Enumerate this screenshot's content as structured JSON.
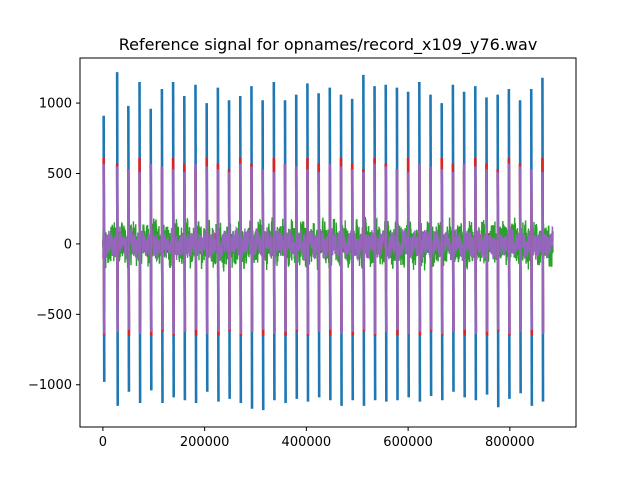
{
  "chart_data": {
    "type": "line",
    "title": "Reference signal for opnames/record_x109_y76.wav",
    "xlabel": "",
    "ylabel": "",
    "xlim": [
      -45000,
      930000
    ],
    "ylim": [
      -1300,
      1320
    ],
    "x_ticks": [
      0,
      200000,
      400000,
      600000,
      800000
    ],
    "x_tick_labels": [
      "0",
      "200000",
      "400000",
      "600000",
      "800000"
    ],
    "y_ticks": [
      -1000,
      -500,
      0,
      500,
      1000
    ],
    "y_tick_labels": [
      "−1000",
      "−500",
      "0",
      "500",
      "1000"
    ],
    "grid": false,
    "legend": "none",
    "signal_x_range": [
      0,
      885000
    ],
    "burst_period": 22200,
    "series": [
      {
        "color": "#1f77b4",
        "spike_positions": [
          1500,
          28000,
          50000,
          72000,
          94000,
          116000,
          138000,
          160000,
          182000,
          204000,
          226000,
          248000,
          270000,
          292000,
          314000,
          336000,
          358000,
          380000,
          402000,
          424000,
          446000,
          468000,
          490000,
          512000,
          534000,
          556000,
          578000,
          600000,
          622000,
          644000,
          666000,
          688000,
          710000,
          732000,
          754000,
          776000,
          798000,
          820000,
          842000,
          864000
        ],
        "spike_peaks": [
          910,
          1220,
          980,
          1150,
          960,
          1100,
          1150,
          1050,
          1130,
          1000,
          1110,
          1020,
          1050,
          1120,
          1020,
          1150,
          1020,
          1060,
          1140,
          1070,
          1110,
          1060,
          1030,
          1200,
          1120,
          1130,
          1110,
          1080,
          1150,
          1060,
          1000,
          1130,
          1080,
          1120,
          1040,
          1060,
          1100,
          1020,
          1100,
          1180
        ],
        "spike_troughs": [
          -980,
          -1150,
          -1050,
          -1130,
          -1040,
          -1130,
          -1090,
          -1110,
          -1130,
          -1050,
          -1120,
          -1100,
          -1130,
          -1170,
          -1180,
          -1110,
          -1130,
          -1100,
          -1120,
          -1090,
          -1110,
          -1150,
          -1110,
          -1150,
          -1110,
          -1120,
          -1110,
          -1090,
          -1120,
          -1080,
          -1110,
          -1050,
          -1090,
          -1110,
          -1070,
          -1160,
          -1100,
          -1060,
          -1150,
          -1120
        ],
        "baseline_amplitude": 60
      },
      {
        "color": "#ff7f0e",
        "baseline_amplitude": 40
      },
      {
        "color": "#2ca02c",
        "baseline_amplitude": 160
      },
      {
        "color": "#d62728",
        "spike_peak": 610,
        "spike_trough": -650,
        "baseline_amplitude": 80
      },
      {
        "color": "#9467bd",
        "spike_peak": 570,
        "spike_trough": -640,
        "baseline_amplitude": 100
      }
    ]
  }
}
